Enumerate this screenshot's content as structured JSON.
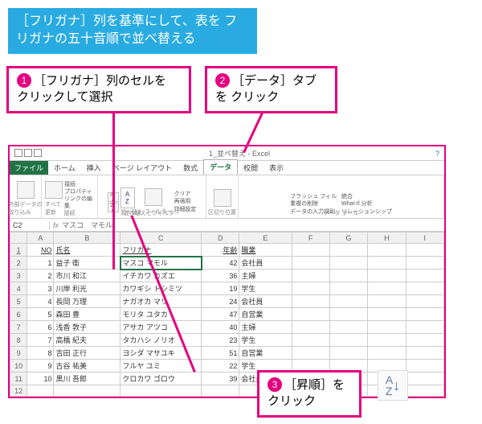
{
  "instruction_box": "［フリガナ］列を基準にして、表を\nフリガナの五十音順で並べ替える",
  "callouts": {
    "c1": {
      "num": "1",
      "text": "［フリガナ］列のセルを\nクリックして選択"
    },
    "c2": {
      "num": "2",
      "text": "［データ］タブを\nクリック"
    },
    "c3": {
      "num": "3",
      "text": "［昇順］を\nクリック"
    }
  },
  "excel": {
    "workbook_title": "1_並べ替え - Excel",
    "tabs": {
      "file": "ファイル",
      "home": "ホーム",
      "insert": "挿入",
      "pagelayout": "ページ レイアウト",
      "formulas": "数式",
      "data": "データ",
      "review": "校閲",
      "view": "表示"
    },
    "ribbon": {
      "get_external": "外部データの\n取り込み",
      "refresh_all": "すべて\n更新",
      "connections_group": "接続",
      "conn_connections": "接続",
      "conn_properties": "プロパティ",
      "conn_editlinks": "リンクの編集",
      "sort_az": "A\nZ",
      "sort_za": "Z\nA",
      "sort_btn": "並べ替え",
      "filter_btn": "フィルター",
      "sortfilter_group": "並べ替えとフィルター",
      "filter_clear": "クリア",
      "filter_reapply": "再適用",
      "filter_advanced": "詳細設定",
      "text_to_columns": "区切り位置",
      "flashfill": "フラッシュ フィル",
      "remove_dup": "重複の削除",
      "data_validation": "データの入力規則",
      "consolidate": "統合",
      "whatif": "What-If 分析",
      "relationships": "リレーションシップ",
      "datatools_group": "データ ツール"
    },
    "namebox": "C2",
    "formula_bar": "マスコ　マモル",
    "columns": [
      "A",
      "B",
      "C",
      "D",
      "E",
      "F",
      "G",
      "H",
      "I"
    ],
    "header_row": {
      "A": "NO",
      "B": "氏名",
      "C": "フリガナ",
      "D": "年齢",
      "E": "職業"
    },
    "rows": [
      {
        "A": "1",
        "B": "益子 衛",
        "C": "マスコ マモル",
        "D": "42",
        "E": "会社員"
      },
      {
        "A": "2",
        "B": "市川 和江",
        "C": "イチカワ カズエ",
        "D": "36",
        "E": "主婦"
      },
      {
        "A": "3",
        "B": "川岸 利光",
        "C": "カワギシ トシミツ",
        "D": "19",
        "E": "学生"
      },
      {
        "A": "4",
        "B": "長岡 万理",
        "C": "ナガオカ マリ",
        "D": "24",
        "E": "会社員"
      },
      {
        "A": "5",
        "B": "森田 豊",
        "C": "モリタ ユタカ",
        "D": "47",
        "E": "自営業"
      },
      {
        "A": "6",
        "B": "浅香 敦子",
        "C": "アサカ アツコ",
        "D": "40",
        "E": "主婦"
      },
      {
        "A": "7",
        "B": "高橋 紀夫",
        "C": "タカハシ ノリオ",
        "D": "23",
        "E": "学生"
      },
      {
        "A": "8",
        "B": "吉田 正行",
        "C": "ヨシダ マサユキ",
        "D": "51",
        "E": "自営業"
      },
      {
        "A": "9",
        "B": "古谷 祐美",
        "C": "フルヤ ユミ",
        "D": "22",
        "E": "学生"
      },
      {
        "A": "10",
        "B": "黒川 吾郎",
        "C": "クロカワ ゴロウ",
        "D": "39",
        "E": "会社員"
      }
    ]
  },
  "sort_icon_label": "A\nZ↓",
  "colors": {
    "accent_pink": "#e4007f",
    "accent_blue": "#29abe2",
    "excel_green": "#217346"
  }
}
